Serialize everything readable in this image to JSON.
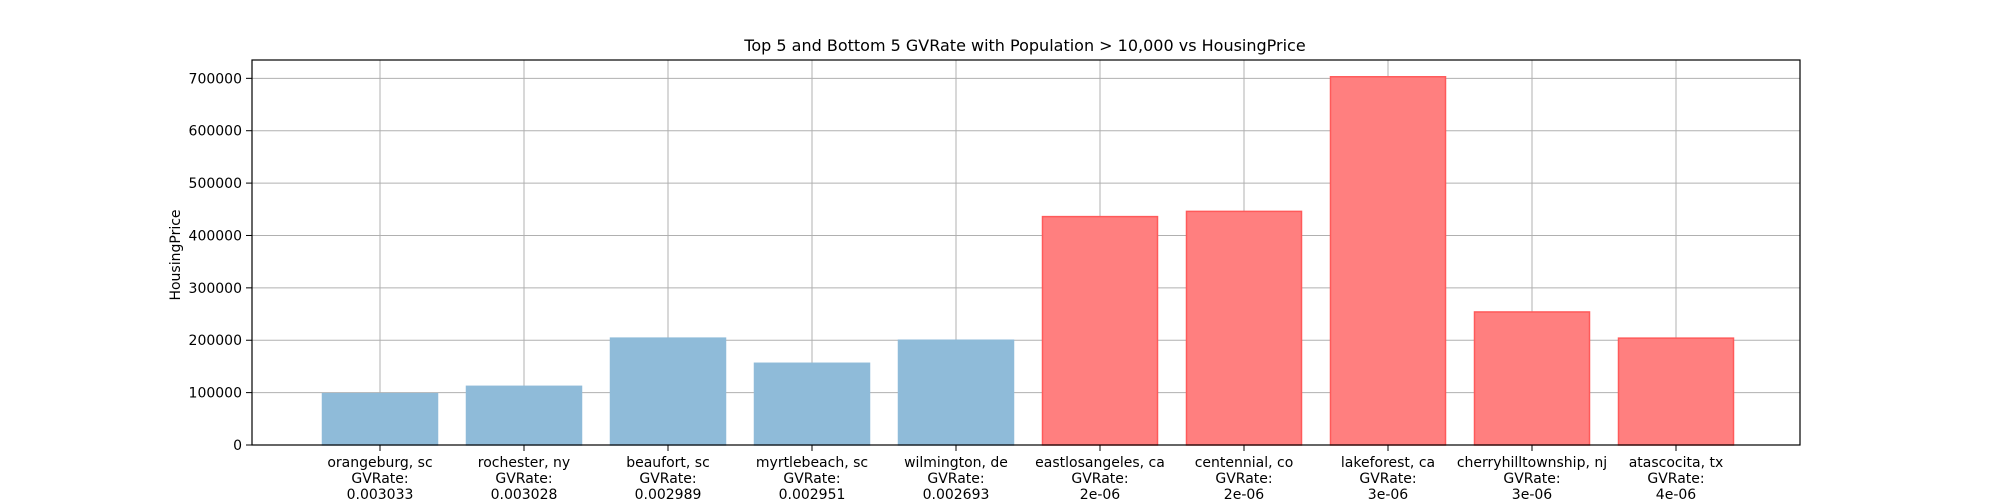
{
  "chart_data": {
    "type": "bar",
    "title": "Top 5 and Bottom 5 GVRate with Population > 10,000 vs HousingPrice",
    "xlabel": "",
    "ylabel": "HousingPrice",
    "ylim": [
      0,
      735000
    ],
    "yticks": [
      0,
      100000,
      200000,
      300000,
      400000,
      500000,
      600000,
      700000
    ],
    "ytick_labels": [
      "0",
      "100000",
      "200000",
      "300000",
      "400000",
      "500000",
      "600000",
      "700000"
    ],
    "grid": true,
    "categories": [
      "orangeburg, sc\nGVRate:\n0.003033",
      "rochester, ny\nGVRate:\n0.003028",
      "beaufort, sc\nGVRate:\n0.002989",
      "myrtlebeach, sc\nGVRate:\n0.002951",
      "wilmington, de\nGVRate:\n0.002693",
      "eastlosangeles, ca\nGVRate:\n2e-06",
      "centennial, co\nGVRate:\n2e-06",
      "lakeforest, ca\nGVRate:\n3e-06",
      "cherryhilltownship, nj\nGVRate:\n3e-06",
      "atascocita, tx\nGVRate:\n4e-06"
    ],
    "values": [
      98000,
      112000,
      204000,
      156000,
      200000,
      436000,
      446000,
      703000,
      254000,
      204000
    ],
    "bar_colors": [
      "#8fbbd9",
      "#8fbbd9",
      "#8fbbd9",
      "#8fbbd9",
      "#8fbbd9",
      "#ff7f7f",
      "#ff7f7f",
      "#ff7f7f",
      "#ff7f7f",
      "#ff7f7f"
    ],
    "bar_edge_colors": [
      "#8fbbd9",
      "#8fbbd9",
      "#8fbbd9",
      "#8fbbd9",
      "#8fbbd9",
      "#ff5a5a",
      "#ff5a5a",
      "#ff5a5a",
      "#ff5a5a",
      "#ff5a5a"
    ],
    "grid_color": "#b0b0b0"
  }
}
